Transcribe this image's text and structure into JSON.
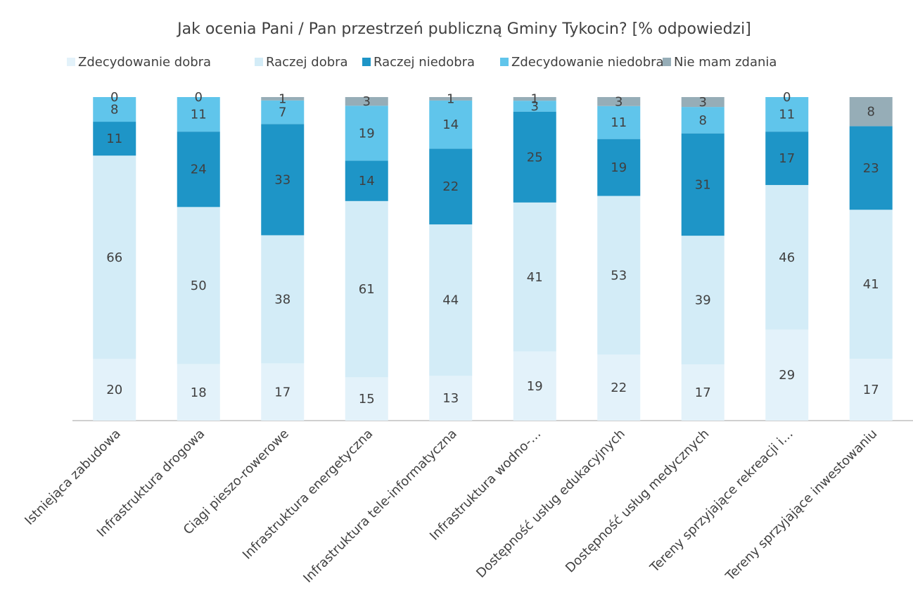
{
  "chart_data": {
    "type": "bar",
    "stacked": true,
    "normalized": true,
    "title": "Jak ocenia Pani / Pan przestrzeń publiczną Gminy Tykocin? [% odpowiedzi]",
    "categories": [
      "Istniejąca zabudowa",
      "Infrastruktura drogowa",
      "Ciągi pieszo-rowerowe",
      "Infrastruktura energetyczna",
      "Infrastruktura tele-informatyczna",
      "Infrastruktura wodno-…",
      "Dostępność usług edukacyjnych",
      "Dostępność usług medycznych",
      "Tereny sprzyjające rekreacji i…",
      "Tereny sprzyjające inwestowaniu"
    ],
    "series": [
      {
        "name": "Zdecydowanie dobra",
        "color": "#e3f2fa",
        "values": [
          20,
          18,
          17,
          15,
          13,
          19,
          22,
          17,
          29,
          17
        ]
      },
      {
        "name": "Raczej dobra",
        "color": "#d3ecf7",
        "values": [
          66,
          50,
          38,
          61,
          44,
          41,
          53,
          39,
          46,
          41
        ]
      },
      {
        "name": "Raczej niedobra",
        "color": "#1e95c7",
        "values": [
          11,
          24,
          33,
          14,
          22,
          25,
          19,
          31,
          17,
          23
        ]
      },
      {
        "name": "Zdecydowanie niedobra",
        "color": "#60c5eb",
        "values": [
          8,
          11,
          7,
          19,
          14,
          3,
          11,
          8,
          11,
          null
        ]
      },
      {
        "name": "Nie mam zdania",
        "color": "#96adb7",
        "values": [
          0,
          0,
          1,
          3,
          1,
          1,
          3,
          3,
          0,
          8
        ]
      }
    ],
    "legend": "top"
  }
}
